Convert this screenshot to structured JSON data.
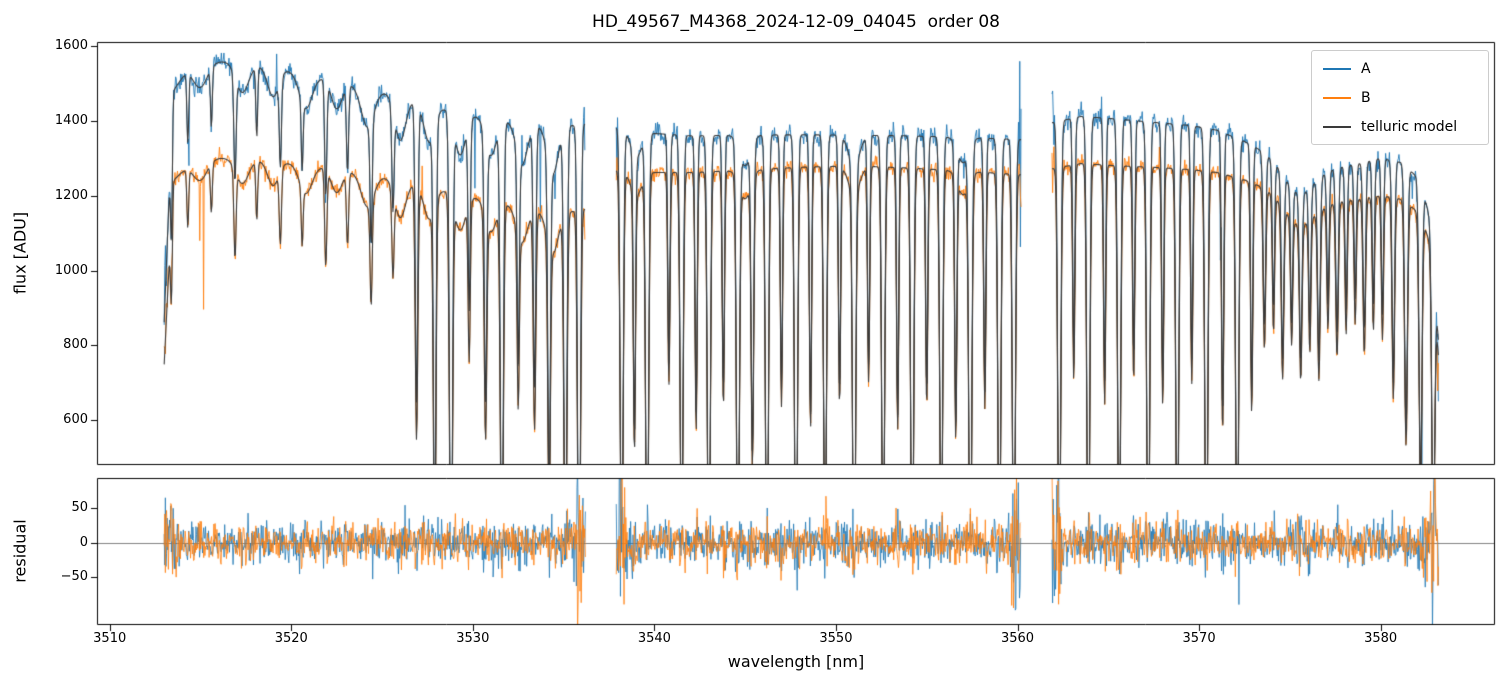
{
  "chart_data": {
    "type": "line",
    "title": "HD_49567_M4368_2024-12-09_04045  order 08",
    "xlabel": "wavelength [nm]",
    "xlim": [
      3509.3,
      3586.3
    ],
    "xticks": [
      3510,
      3520,
      3530,
      3540,
      3550,
      3560,
      3570,
      3580
    ],
    "panels": [
      {
        "name": "flux",
        "ylabel": "flux [ADU]",
        "ylim": [
          480,
          1611
        ],
        "yticks": [
          600,
          800,
          1000,
          1200,
          1400,
          1600
        ]
      },
      {
        "name": "residual",
        "ylabel": "residual",
        "ylim": [
          -119,
          94
        ],
        "yticks": [
          -50,
          0,
          50
        ]
      }
    ],
    "legend": {
      "position": "upper right",
      "entries": [
        {
          "label": "A",
          "color": "#1f77b4"
        },
        {
          "label": "B",
          "color": "#ff7f0e"
        },
        {
          "label": "telluric model",
          "color": "#3a3a3a"
        }
      ]
    },
    "grid": false,
    "segments_nm": [
      [
        3513.0,
        3536.2
      ],
      [
        3537.9,
        3560.2
      ],
      [
        3561.9,
        3583.2
      ]
    ],
    "continuum_x": [
      3512.95,
      3513.5,
      3514.3,
      3515.5,
      3516.5,
      3518.0,
      3519.5,
      3521.0,
      3522.5,
      3524.0,
      3525.5,
      3527.0,
      3528.5,
      3530.0,
      3531.5,
      3533.0,
      3534.5,
      3536.2,
      3537.9,
      3539.5,
      3542.0,
      3545.0,
      3548.0,
      3551.0,
      3554.0,
      3557.0,
      3560.2,
      3561.9,
      3563.5,
      3565.5,
      3567.5,
      3569.5,
      3571.0,
      3572.5,
      3574.0,
      3575.5,
      3577.0,
      3578.5,
      3580.0,
      3581.2,
      3582.2,
      3582.8,
      3583.2
    ],
    "continuum_A": [
      800,
      1480,
      1540,
      1560,
      1558,
      1550,
      1538,
      1523,
      1508,
      1490,
      1472,
      1452,
      1432,
      1415,
      1402,
      1392,
      1382,
      1392,
      1382,
      1368,
      1360,
      1362,
      1363,
      1362,
      1360,
      1356,
      1350,
      1395,
      1412,
      1405,
      1396,
      1388,
      1375,
      1345,
      1308,
      1282,
      1272,
      1282,
      1300,
      1288,
      1240,
      1120,
      800
    ],
    "continuum_B": [
      700,
      1240,
      1280,
      1302,
      1300,
      1296,
      1290,
      1282,
      1272,
      1260,
      1246,
      1230,
      1213,
      1197,
      1182,
      1165,
      1148,
      1165,
      1268,
      1262,
      1262,
      1268,
      1276,
      1280,
      1274,
      1266,
      1256,
      1272,
      1286,
      1280,
      1276,
      1270,
      1262,
      1242,
      1215,
      1192,
      1180,
      1188,
      1200,
      1190,
      1150,
      1060,
      760
    ],
    "telluric_lines": [
      [
        3515.0,
        0.04,
        0.4
      ],
      [
        3517.3,
        0.05,
        0.35
      ],
      [
        3519.0,
        0.05,
        0.3
      ],
      [
        3520.8,
        0.06,
        0.35
      ],
      [
        3522.5,
        0.05,
        0.3
      ],
      [
        3524.2,
        0.07,
        0.35
      ],
      [
        3526.0,
        0.08,
        0.3
      ],
      [
        3527.6,
        0.07,
        0.3
      ],
      [
        3529.3,
        0.08,
        0.3
      ],
      [
        3531.0,
        0.07,
        0.3
      ],
      [
        3532.7,
        0.08,
        0.3
      ],
      [
        3534.4,
        0.09,
        0.3
      ],
      [
        3513.4,
        0.2,
        0.05
      ],
      [
        3514.3,
        0.12,
        0.05
      ],
      [
        3515.6,
        0.1,
        0.05
      ],
      [
        3516.9,
        0.18,
        0.06
      ],
      [
        3518.1,
        0.12,
        0.05
      ],
      [
        3519.4,
        0.15,
        0.06
      ],
      [
        3520.6,
        0.12,
        0.05
      ],
      [
        3521.9,
        0.2,
        0.06
      ],
      [
        3523.1,
        0.15,
        0.06
      ],
      [
        3524.4,
        0.22,
        0.06
      ],
      [
        3525.6,
        0.18,
        0.06
      ],
      [
        3526.9,
        0.55,
        0.07
      ],
      [
        3527.9,
        0.8,
        0.07
      ],
      [
        3528.8,
        0.95,
        0.08
      ],
      [
        3529.8,
        0.35,
        0.06
      ],
      [
        3530.7,
        0.5,
        0.07
      ],
      [
        3531.6,
        0.9,
        0.08
      ],
      [
        3532.5,
        0.4,
        0.06
      ],
      [
        3533.4,
        0.5,
        0.07
      ],
      [
        3534.2,
        0.65,
        0.07
      ],
      [
        3535.1,
        0.9,
        0.08
      ],
      [
        3535.85,
        0.97,
        0.08
      ],
      [
        3538.2,
        0.9,
        0.08
      ],
      [
        3538.9,
        0.55,
        0.06
      ],
      [
        3539.6,
        0.92,
        0.08
      ],
      [
        3540.8,
        0.45,
        0.06
      ],
      [
        3541.5,
        0.85,
        0.08
      ],
      [
        3542.3,
        0.55,
        0.06
      ],
      [
        3543.0,
        0.95,
        0.08
      ],
      [
        3543.8,
        0.5,
        0.06
      ],
      [
        3544.6,
        0.88,
        0.08
      ],
      [
        3545.4,
        0.6,
        0.07
      ],
      [
        3546.2,
        0.93,
        0.08
      ],
      [
        3547.0,
        0.5,
        0.06
      ],
      [
        3547.8,
        0.96,
        0.08
      ],
      [
        3548.6,
        0.55,
        0.06
      ],
      [
        3549.4,
        0.85,
        0.08
      ],
      [
        3550.2,
        0.5,
        0.06
      ],
      [
        3551.0,
        0.92,
        0.08
      ],
      [
        3551.8,
        0.45,
        0.06
      ],
      [
        3552.6,
        0.88,
        0.08
      ],
      [
        3553.4,
        0.55,
        0.06
      ],
      [
        3554.2,
        0.95,
        0.08
      ],
      [
        3555.0,
        0.5,
        0.06
      ],
      [
        3555.8,
        0.85,
        0.08
      ],
      [
        3556.6,
        0.55,
        0.06
      ],
      [
        3557.4,
        0.92,
        0.08
      ],
      [
        3558.2,
        0.5,
        0.06
      ],
      [
        3559.0,
        0.88,
        0.08
      ],
      [
        3559.8,
        0.93,
        0.08
      ],
      [
        3539.0,
        0.05,
        0.3
      ],
      [
        3545.0,
        0.06,
        0.3
      ],
      [
        3551.0,
        0.06,
        0.3
      ],
      [
        3557.0,
        0.05,
        0.3
      ],
      [
        3562.3,
        0.9,
        0.08
      ],
      [
        3563.1,
        0.45,
        0.06
      ],
      [
        3563.9,
        0.92,
        0.08
      ],
      [
        3564.8,
        0.5,
        0.06
      ],
      [
        3565.6,
        0.88,
        0.08
      ],
      [
        3566.4,
        0.45,
        0.06
      ],
      [
        3567.2,
        0.93,
        0.08
      ],
      [
        3568.0,
        0.5,
        0.06
      ],
      [
        3568.8,
        0.87,
        0.08
      ],
      [
        3569.6,
        0.45,
        0.06
      ],
      [
        3570.4,
        0.92,
        0.08
      ],
      [
        3571.3,
        0.55,
        0.06
      ],
      [
        3572.1,
        0.88,
        0.08
      ],
      [
        3572.9,
        0.5,
        0.06
      ],
      [
        3573.6,
        0.35,
        0.07
      ],
      [
        3574.1,
        0.3,
        0.06
      ],
      [
        3574.6,
        0.38,
        0.07
      ],
      [
        3575.1,
        0.28,
        0.06
      ],
      [
        3575.6,
        0.35,
        0.07
      ],
      [
        3576.1,
        0.3,
        0.06
      ],
      [
        3576.6,
        0.38,
        0.07
      ],
      [
        3577.1,
        0.28,
        0.06
      ],
      [
        3577.6,
        0.35,
        0.07
      ],
      [
        3578.1,
        0.3,
        0.06
      ],
      [
        3578.6,
        0.28,
        0.06
      ],
      [
        3579.1,
        0.35,
        0.07
      ],
      [
        3579.6,
        0.3,
        0.06
      ],
      [
        3580.1,
        0.32,
        0.06
      ],
      [
        3580.7,
        0.45,
        0.07
      ],
      [
        3581.4,
        0.55,
        0.08
      ],
      [
        3582.2,
        0.65,
        0.08
      ],
      [
        3582.9,
        0.75,
        0.08
      ],
      [
        3575.5,
        0.06,
        0.8
      ]
    ],
    "noise_adu": {
      "A": 13,
      "B": 10
    },
    "residual_sigma": {
      "A": 14,
      "B": 13
    },
    "colors": {
      "spine": "#000000",
      "zero_line": "#808080",
      "background": "#ffffff"
    }
  }
}
